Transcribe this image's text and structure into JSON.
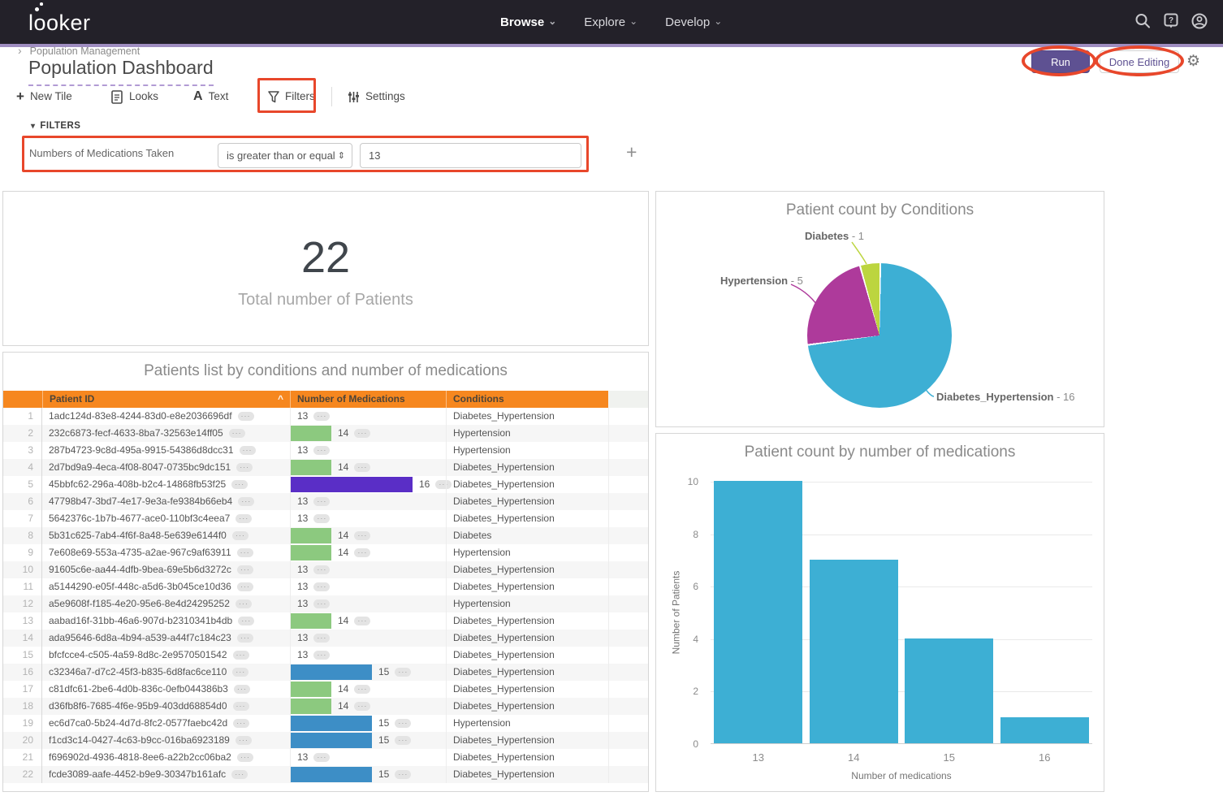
{
  "nav": {
    "logo_text": "looker",
    "menus": [
      {
        "label": "Browse"
      },
      {
        "label": "Explore"
      },
      {
        "label": "Develop"
      }
    ]
  },
  "header": {
    "breadcrumb": "Population Management",
    "title": "Population Dashboard",
    "run_button": "Run",
    "done_editing_button": "Done Editing"
  },
  "toolbar": {
    "new_tile": "New Tile",
    "looks": "Looks",
    "text": "Text",
    "filters": "Filters",
    "settings": "Settings"
  },
  "filters_bar": {
    "section_label": "FILTERS",
    "filter_name": "Numbers of Medications Taken",
    "operator": "is greater than or equal",
    "value": "13"
  },
  "tiles": {
    "total_patients": {
      "value": "22",
      "label": "Total number of Patients"
    },
    "patients_table": {
      "title": "Patients list by conditions and number of medications",
      "columns": [
        "Patient ID",
        "Number of Medications",
        "Conditions"
      ],
      "rows": [
        {
          "n": 1,
          "id": "1adc124d-83e8-4244-83d0-e8e2036696df",
          "meds": 13,
          "condition": "Diabetes_Hypertension"
        },
        {
          "n": 2,
          "id": "232c6873-fecf-4633-8ba7-32563e14ff05",
          "meds": 14,
          "condition": "Hypertension"
        },
        {
          "n": 3,
          "id": "287b4723-9c8d-495a-9915-54386d8dcc31",
          "meds": 13,
          "condition": "Hypertension"
        },
        {
          "n": 4,
          "id": "2d7bd9a9-4eca-4f08-8047-0735bc9dc151",
          "meds": 14,
          "condition": "Diabetes_Hypertension"
        },
        {
          "n": 5,
          "id": "45bbfc62-296a-408b-b2c4-14868fb53f25",
          "meds": 16,
          "condition": "Diabetes_Hypertension"
        },
        {
          "n": 6,
          "id": "47798b47-3bd7-4e17-9e3a-fe9384b66eb4",
          "meds": 13,
          "condition": "Diabetes_Hypertension"
        },
        {
          "n": 7,
          "id": "5642376c-1b7b-4677-ace0-110bf3c4eea7",
          "meds": 13,
          "condition": "Diabetes_Hypertension"
        },
        {
          "n": 8,
          "id": "5b31c625-7ab4-4f6f-8a48-5e639e6144f0",
          "meds": 14,
          "condition": "Diabetes"
        },
        {
          "n": 9,
          "id": "7e608e69-553a-4735-a2ae-967c9af63911",
          "meds": 14,
          "condition": "Hypertension"
        },
        {
          "n": 10,
          "id": "91605c6e-aa44-4dfb-9bea-69e5b6d3272c",
          "meds": 13,
          "condition": "Diabetes_Hypertension"
        },
        {
          "n": 11,
          "id": "a5144290-e05f-448c-a5d6-3b045ce10d36",
          "meds": 13,
          "condition": "Diabetes_Hypertension"
        },
        {
          "n": 12,
          "id": "a5e9608f-f185-4e20-95e6-8e4d24295252",
          "meds": 13,
          "condition": "Hypertension"
        },
        {
          "n": 13,
          "id": "aabad16f-31bb-46a6-907d-b2310341b4db",
          "meds": 14,
          "condition": "Diabetes_Hypertension"
        },
        {
          "n": 14,
          "id": "ada95646-6d8a-4b94-a539-a44f7c184c23",
          "meds": 13,
          "condition": "Diabetes_Hypertension"
        },
        {
          "n": 15,
          "id": "bfcfcce4-c505-4a59-8d8c-2e9570501542",
          "meds": 13,
          "condition": "Diabetes_Hypertension"
        },
        {
          "n": 16,
          "id": "c32346a7-d7c2-45f3-b835-6d8fac6ce110",
          "meds": 15,
          "condition": "Diabetes_Hypertension"
        },
        {
          "n": 17,
          "id": "c81dfc61-2be6-4d0b-836c-0efb044386b3",
          "meds": 14,
          "condition": "Diabetes_Hypertension"
        },
        {
          "n": 18,
          "id": "d36fb8f6-7685-4f6e-95b9-403dd68854d0",
          "meds": 14,
          "condition": "Diabetes_Hypertension"
        },
        {
          "n": 19,
          "id": "ec6d7ca0-5b24-4d7d-8fc2-0577faebc42d",
          "meds": 15,
          "condition": "Hypertension"
        },
        {
          "n": 20,
          "id": "f1cd3c14-0427-4c63-b9cc-016ba6923189",
          "meds": 15,
          "condition": "Diabetes_Hypertension"
        },
        {
          "n": 21,
          "id": "f696902d-4936-4818-8ee6-a22b2cc06ba2",
          "meds": 13,
          "condition": "Diabetes_Hypertension"
        },
        {
          "n": 22,
          "id": "fcde3089-aafe-4452-b9e9-30347b161afc",
          "meds": 15,
          "condition": "Diabetes_Hypertension"
        }
      ]
    }
  },
  "chart_data": [
    {
      "type": "pie",
      "title": "Patient count by Conditions",
      "labels": [
        "Diabetes_Hypertension",
        "Hypertension",
        "Diabetes"
      ],
      "values": [
        16,
        5,
        1
      ],
      "colors": [
        "#3dafd4",
        "#ae3a9b",
        "#bcd53f"
      ],
      "legend_position": "callout-labels",
      "callouts": [
        {
          "name": "Diabetes",
          "value_label": " - 1"
        },
        {
          "name": "Hypertension",
          "value_label": " - 5"
        },
        {
          "name": "Diabetes_Hypertension",
          "value_label": " - 16"
        }
      ]
    },
    {
      "type": "bar",
      "title": "Patient count by number of medications",
      "categories": [
        "13",
        "14",
        "15",
        "16"
      ],
      "values": [
        10,
        7,
        4,
        1
      ],
      "xlabel": "Number of medications",
      "ylabel": "Number of Patients",
      "ylim": [
        0,
        10
      ],
      "yticks": [
        0,
        2,
        4,
        6,
        8,
        10
      ],
      "color": "#3dafd4",
      "grid": true,
      "legend": false
    }
  ],
  "icons": {
    "breadcrumb_chevron": "›",
    "menu_chevron": "⌄",
    "plus": "+",
    "text_a": "A",
    "collapse_arrow": "▾",
    "sort_asc": "^",
    "select_arrows": "⇕",
    "row_actions": "···",
    "add_filter": "+",
    "gear": "⚙"
  },
  "colors": {
    "nav_background": "#232129",
    "accent_strip": "#9f8dc0",
    "accent_purple": "#5e5192",
    "annotation_red": "#e8472b",
    "table_header_orange": "#f6871f",
    "med_bar_14": "#8cc97f",
    "med_bar_15": "#3d8ec6",
    "med_bar_16": "#5a2ec6"
  }
}
